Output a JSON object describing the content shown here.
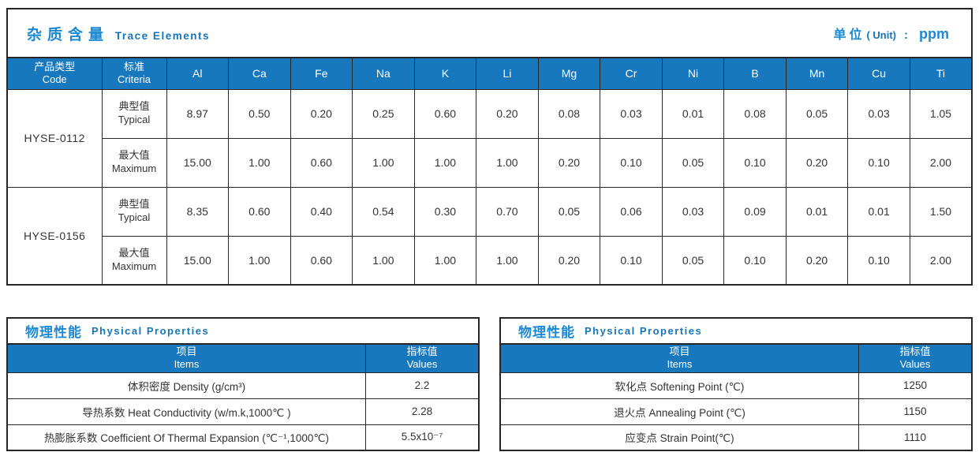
{
  "trace": {
    "title_zh": "杂质含量",
    "title_en": "Trace Elements",
    "unit": {
      "zh": "单位",
      "en": "( Unit)",
      "sep": ":",
      "value": "ppm"
    },
    "headers": {
      "code_zh": "产品类型",
      "code_en": "Code",
      "criteria_zh": "标准",
      "criteria_en": "Criteria",
      "elements": [
        "Al",
        "Ca",
        "Fe",
        "Na",
        "K",
        "Li",
        "Mg",
        "Cr",
        "Ni",
        "B",
        "Mn",
        "Cu",
        "Ti"
      ]
    },
    "products": [
      {
        "code": "HYSE-0112",
        "rows": [
          {
            "label_zh": "典型值",
            "label_en": "Typical",
            "values": [
              "8.97",
              "0.50",
              "0.20",
              "0.25",
              "0.60",
              "0.20",
              "0.08",
              "0.03",
              "0.01",
              "0.08",
              "0.05",
              "0.03",
              "1.05"
            ]
          },
          {
            "label_zh": "最大值",
            "label_en": "Maximum",
            "values": [
              "15.00",
              "1.00",
              "0.60",
              "1.00",
              "1.00",
              "1.00",
              "0.20",
              "0.10",
              "0.05",
              "0.10",
              "0.20",
              "0.10",
              "2.00"
            ]
          }
        ]
      },
      {
        "code": "HYSE-0156",
        "rows": [
          {
            "label_zh": "典型值",
            "label_en": "Typical",
            "values": [
              "8.35",
              "0.60",
              "0.40",
              "0.54",
              "0.30",
              "0.70",
              "0.05",
              "0.06",
              "0.03",
              "0.09",
              "0.01",
              "0.01",
              "1.50"
            ]
          },
          {
            "label_zh": "最大值",
            "label_en": "Maximum",
            "values": [
              "15.00",
              "1.00",
              "0.60",
              "1.00",
              "1.00",
              "1.00",
              "0.20",
              "0.10",
              "0.05",
              "0.10",
              "0.20",
              "0.10",
              "2.00"
            ]
          }
        ]
      }
    ]
  },
  "phys_left": {
    "title_zh": "物理性能",
    "title_en": "Physical Properties",
    "headers": {
      "items_zh": "项目",
      "items_en": "Items",
      "values_zh": "指标值",
      "values_en": "Values"
    },
    "rows": [
      {
        "item": "体积密度 Density (g/cm³)",
        "value": "2.2"
      },
      {
        "item": "导热系数 Heat Conductivity (w/m.k,1000℃ )",
        "value": "2.28"
      },
      {
        "item": "热膨胀系数 Coefficient Of Thermal Expansion (℃⁻¹,1000℃)",
        "value": "5.5x10⁻⁷"
      }
    ]
  },
  "phys_right": {
    "title_zh": "物理性能",
    "title_en": "Physical Properties",
    "headers": {
      "items_zh": "项目",
      "items_en": "Items",
      "values_zh": "指标值",
      "values_en": "Values"
    },
    "rows": [
      {
        "item": "软化点 Softening Point (℃)",
        "value": "1250"
      },
      {
        "item": "退火点 Annealing Point (℃)",
        "value": "1150"
      },
      {
        "item": "应变点 Strain Point(℃)",
        "value": "1110"
      }
    ]
  },
  "colors": {
    "header_blue": "#1878be",
    "title_blue": "#1c89d2",
    "subtitle_blue": "#1674ba"
  }
}
